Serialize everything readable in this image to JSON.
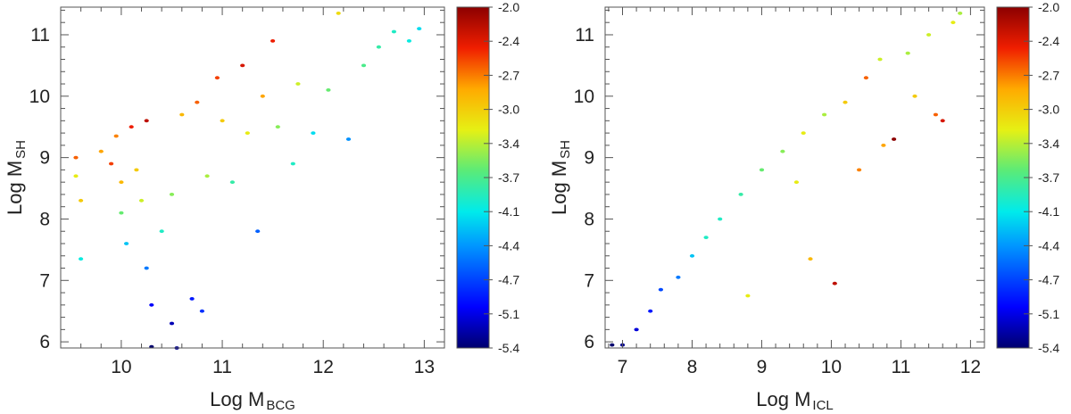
{
  "chart_data": [
    {
      "type": "scatter",
      "xlabel": "Log M",
      "xlabel_sub": "BCG",
      "ylabel": "Log M",
      "ylabel_sub": "SH",
      "xlim": [
        9.4,
        13.2
      ],
      "ylim": [
        5.9,
        11.45
      ],
      "xticks": [
        10,
        11,
        12,
        13
      ],
      "yticks": [
        6,
        7,
        8,
        9,
        10,
        11
      ],
      "color_range": [
        -5.4,
        -2.0
      ],
      "point_color": "mapped from c via rainbow colormap",
      "points": {
        "columns": [
          "x",
          "y",
          "c"
        ],
        "values": [
          [
            9.55,
            9.0,
            -2.6
          ],
          [
            9.6,
            8.3,
            -3.0
          ],
          [
            9.55,
            8.7,
            -3.2
          ],
          [
            9.6,
            7.35,
            -4.0
          ],
          [
            9.8,
            9.1,
            -2.8
          ],
          [
            9.9,
            8.9,
            -2.5
          ],
          [
            9.95,
            9.35,
            -2.7
          ],
          [
            10.0,
            8.6,
            -2.9
          ],
          [
            10.0,
            8.1,
            -3.6
          ],
          [
            10.05,
            7.6,
            -4.2
          ],
          [
            10.1,
            9.5,
            -2.4
          ],
          [
            10.15,
            8.8,
            -3.0
          ],
          [
            10.2,
            8.3,
            -3.3
          ],
          [
            10.25,
            9.6,
            -2.2
          ],
          [
            10.25,
            7.2,
            -4.5
          ],
          [
            10.3,
            6.6,
            -5.0
          ],
          [
            10.3,
            5.92,
            -5.4
          ],
          [
            10.4,
            7.8,
            -3.9
          ],
          [
            10.5,
            8.4,
            -3.5
          ],
          [
            10.5,
            6.3,
            -5.2
          ],
          [
            10.55,
            5.9,
            -5.3
          ],
          [
            10.6,
            9.7,
            -2.9
          ],
          [
            10.7,
            6.7,
            -4.9
          ],
          [
            10.75,
            9.9,
            -2.6
          ],
          [
            10.8,
            6.5,
            -4.8
          ],
          [
            10.85,
            8.7,
            -3.4
          ],
          [
            10.95,
            10.3,
            -2.5
          ],
          [
            11.0,
            9.6,
            -3.0
          ],
          [
            11.1,
            8.6,
            -3.8
          ],
          [
            11.2,
            10.5,
            -2.3
          ],
          [
            11.25,
            9.4,
            -3.2
          ],
          [
            11.35,
            7.8,
            -4.6
          ],
          [
            11.4,
            10.0,
            -2.8
          ],
          [
            11.5,
            10.9,
            -2.4
          ],
          [
            11.55,
            9.5,
            -3.5
          ],
          [
            11.7,
            8.9,
            -3.9
          ],
          [
            11.75,
            10.2,
            -3.3
          ],
          [
            11.9,
            9.4,
            -4.1
          ],
          [
            12.05,
            10.1,
            -3.6
          ],
          [
            12.15,
            11.35,
            -3.1
          ],
          [
            12.25,
            9.3,
            -4.4
          ],
          [
            12.4,
            10.5,
            -3.7
          ],
          [
            12.55,
            10.8,
            -3.8
          ],
          [
            12.7,
            11.05,
            -3.9
          ],
          [
            12.85,
            10.9,
            -4.0
          ],
          [
            12.95,
            11.1,
            -4.1
          ]
        ]
      }
    },
    {
      "type": "scatter",
      "xlabel": "Log M",
      "xlabel_sub": "ICL",
      "ylabel": "Log M",
      "ylabel_sub": "SH",
      "xlim": [
        6.75,
        12.2
      ],
      "ylim": [
        5.9,
        11.45
      ],
      "xticks": [
        7,
        8,
        9,
        10,
        11,
        12
      ],
      "yticks": [
        6,
        7,
        8,
        9,
        10,
        11
      ],
      "color_range": [
        -5.4,
        -2.0
      ],
      "point_color": "mapped from c via rainbow colormap",
      "points": {
        "columns": [
          "x",
          "y",
          "c"
        ],
        "values": [
          [
            6.85,
            5.95,
            -5.4
          ],
          [
            7.0,
            5.95,
            -5.3
          ],
          [
            7.2,
            6.2,
            -5.1
          ],
          [
            7.4,
            6.5,
            -4.9
          ],
          [
            7.55,
            6.85,
            -4.7
          ],
          [
            7.8,
            7.05,
            -4.5
          ],
          [
            8.0,
            7.4,
            -4.2
          ],
          [
            8.2,
            7.7,
            -3.9
          ],
          [
            8.4,
            8.0,
            -3.9
          ],
          [
            8.7,
            8.4,
            -3.8
          ],
          [
            8.8,
            6.75,
            -3.2
          ],
          [
            9.0,
            8.8,
            -3.6
          ],
          [
            9.3,
            9.1,
            -3.5
          ],
          [
            9.5,
            8.6,
            -3.2
          ],
          [
            9.6,
            9.4,
            -3.2
          ],
          [
            9.7,
            7.35,
            -2.9
          ],
          [
            9.9,
            9.7,
            -3.4
          ],
          [
            10.05,
            6.95,
            -2.2
          ],
          [
            10.2,
            9.9,
            -3.0
          ],
          [
            10.4,
            8.8,
            -2.7
          ],
          [
            10.5,
            10.3,
            -2.6
          ],
          [
            10.7,
            10.6,
            -3.3
          ],
          [
            10.75,
            9.2,
            -2.8
          ],
          [
            10.9,
            9.3,
            -2.0
          ],
          [
            11.1,
            10.7,
            -3.4
          ],
          [
            11.2,
            10.0,
            -3.0
          ],
          [
            11.4,
            11.0,
            -3.3
          ],
          [
            11.5,
            9.7,
            -2.6
          ],
          [
            11.6,
            9.6,
            -2.3
          ],
          [
            11.75,
            11.2,
            -3.2
          ],
          [
            11.85,
            11.35,
            -3.4
          ]
        ]
      }
    }
  ]
}
